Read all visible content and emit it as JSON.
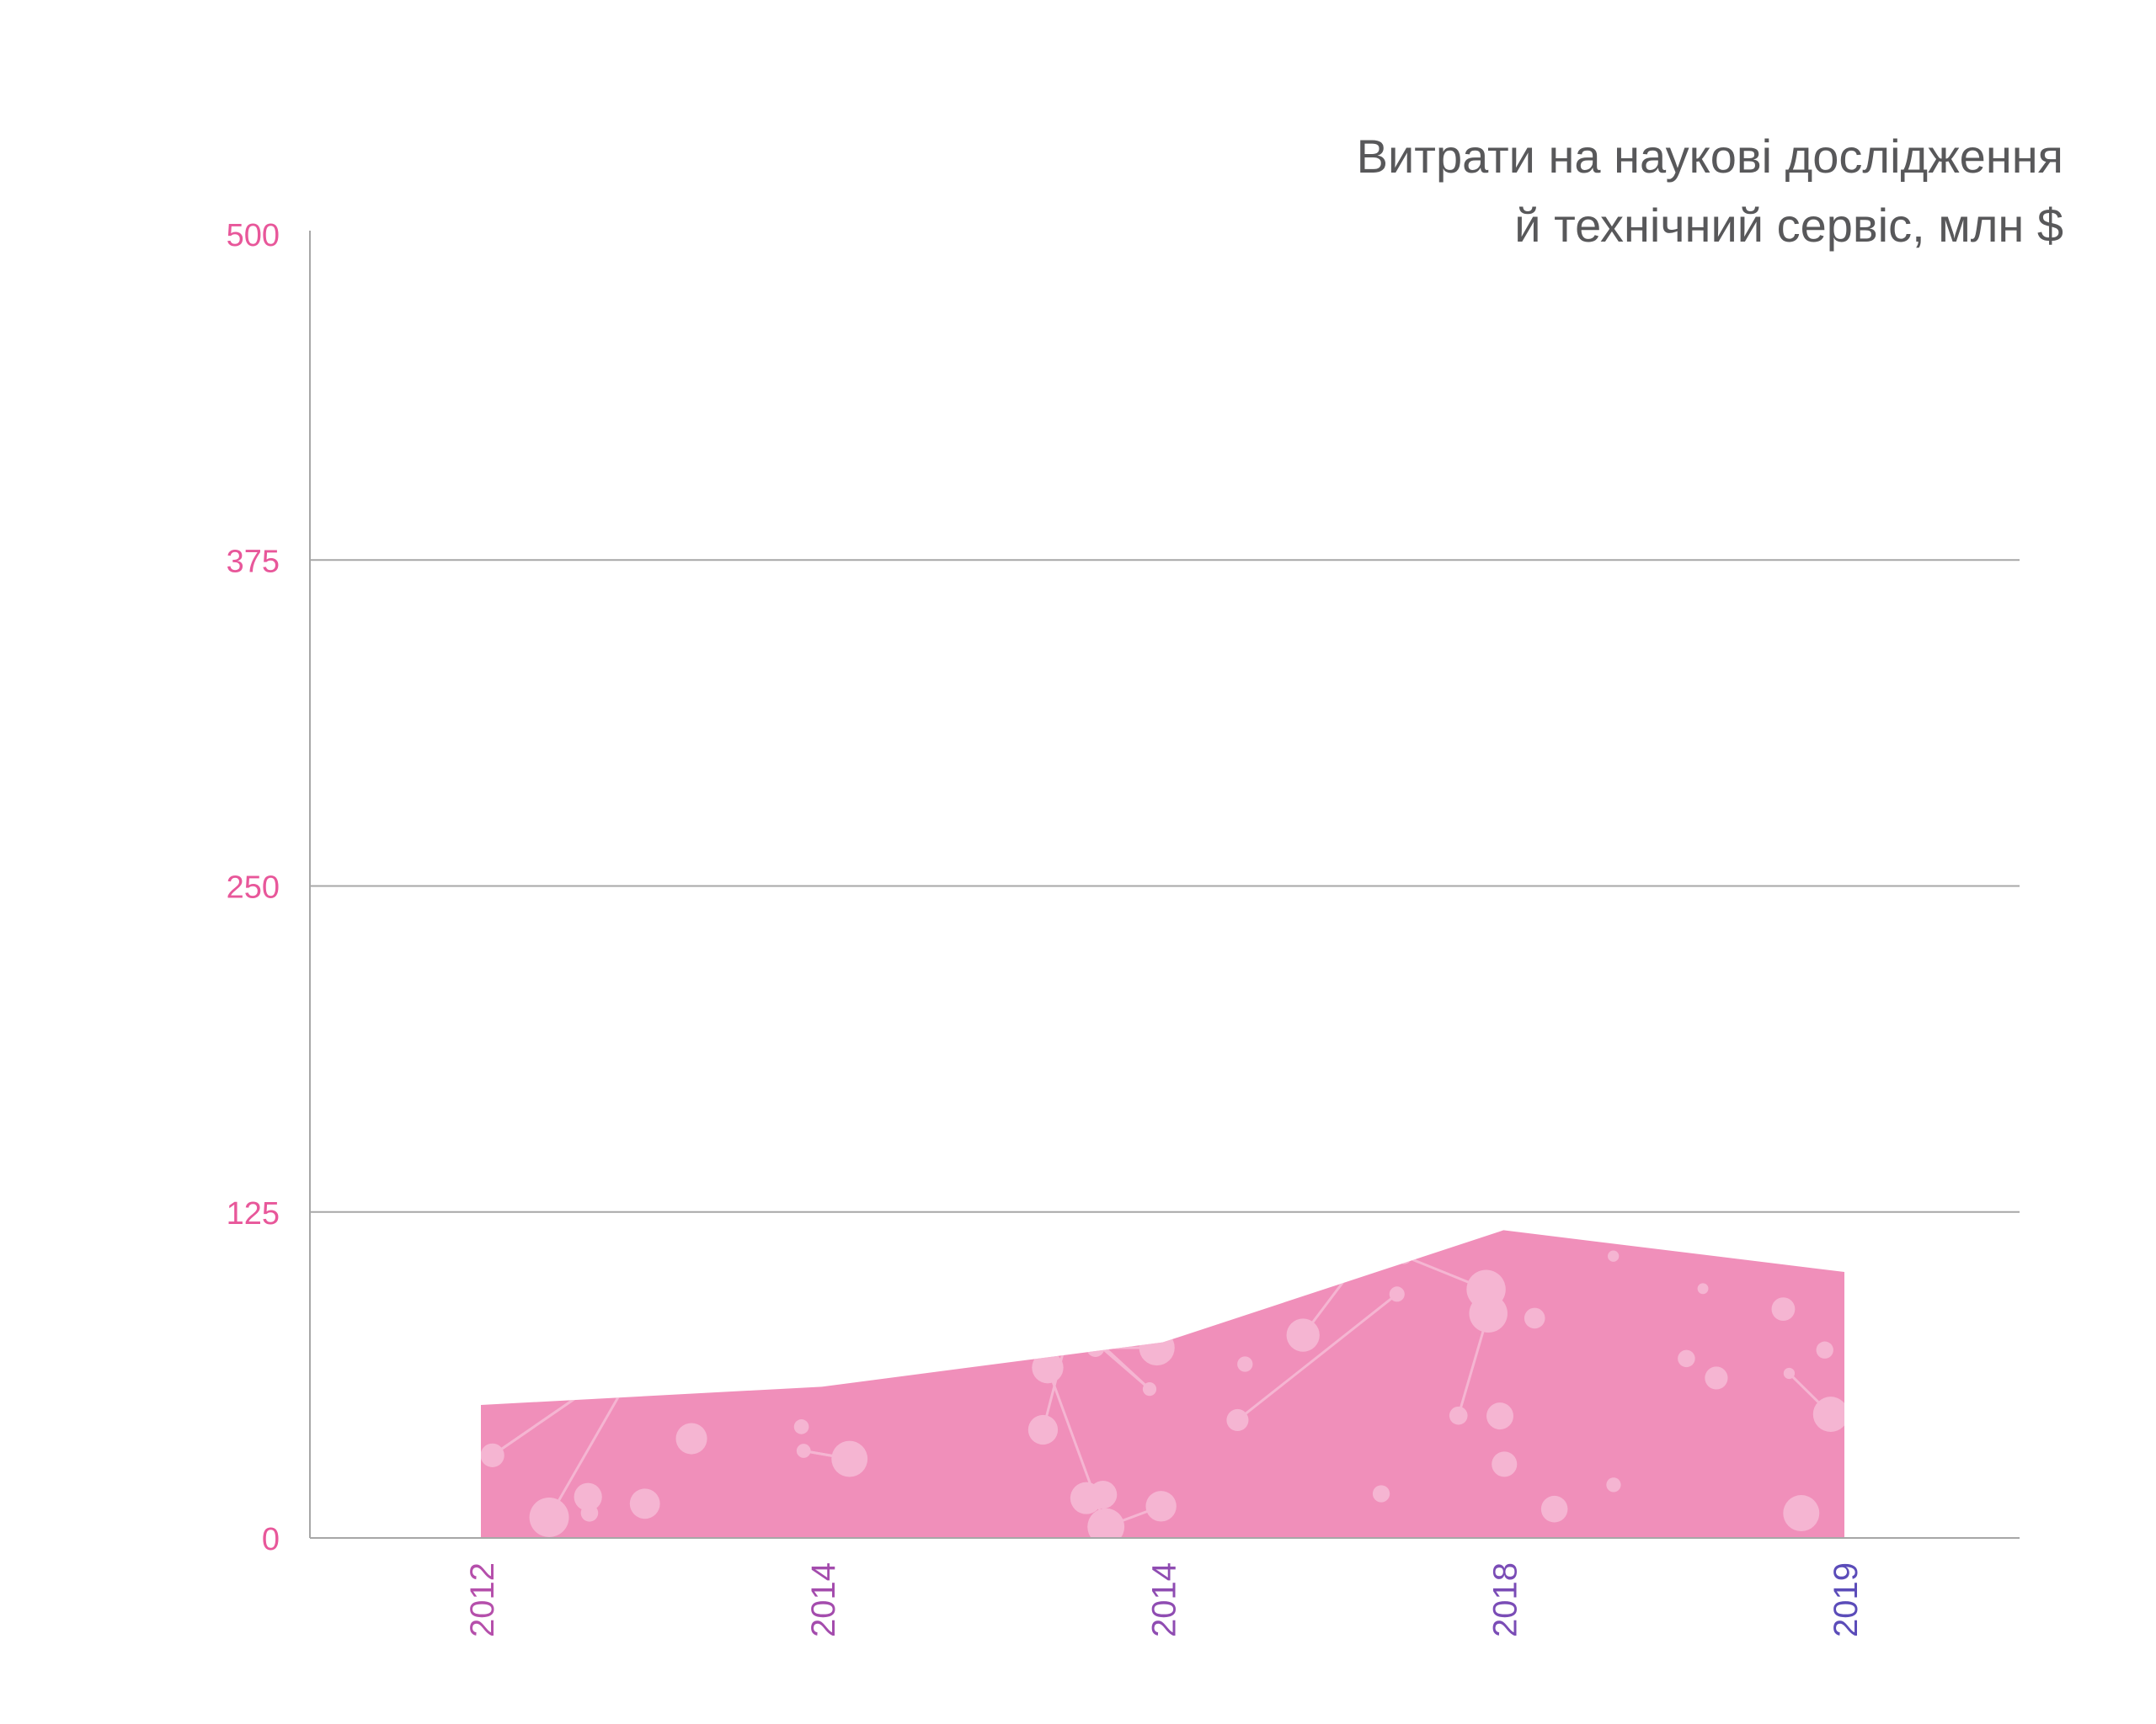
{
  "chart_data": {
    "type": "area",
    "title": [
      "Витрати на наукові дослідження",
      "й технічний сервіс, млн $"
    ],
    "xlabel": "",
    "ylabel": "",
    "categories": [
      "2012",
      "2014",
      "2014",
      "2018",
      "2019"
    ],
    "series": [
      {
        "values": [
          51,
          58,
          75,
          118,
          102
        ]
      }
    ],
    "ylim": [
      0,
      500
    ],
    "yticks": [
      "0",
      "125",
      "250",
      "375",
      "500"
    ],
    "grid": true,
    "legend": "none",
    "colors": {
      "area": "#f08fba",
      "ytick_labels": "#e8579a",
      "xtick_labels": [
        "#b54fab",
        "#a44cad",
        "#8f4cb2",
        "#7a4cb6",
        "#5b4cb9"
      ],
      "gridline": "#a7a7a7",
      "title": "#58585a",
      "pattern": "#f7c2da"
    }
  }
}
